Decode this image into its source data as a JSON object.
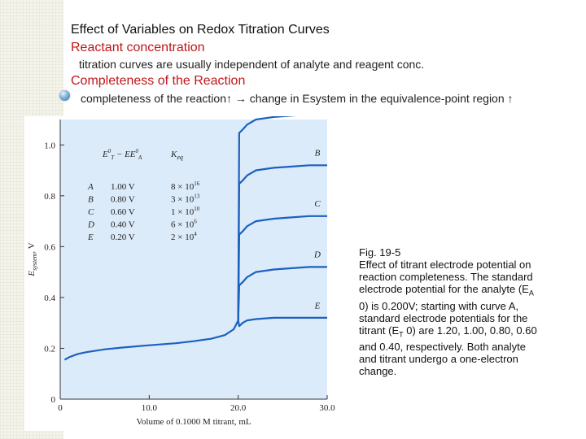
{
  "slide": {
    "heading": "Effect of Variables on Redox Titration Curves",
    "subheading1": "Reactant concentration",
    "bullet1": "titration curves are usually independent of analyte and reagent conc.",
    "subheading2": "Completeness of the Reaction",
    "bullet2": "completeness of the reaction↑ → change in Esystem in the equivalence-point region ↑"
  },
  "caption": {
    "lines": [
      "Fig. 19-5",
      " Effect of titrant electrode potential on",
      "reaction completeness. The standard",
      "electrode potential for the analyte (E",
      "0) is 0.200V; starting with curve A,",
      "standard electrode potentials for the",
      "titrant (E",
      "and 0.40, respectively. Both analyte",
      "and titrant undergo a one-electron",
      "change."
    ],
    "sub_A": "A",
    "sub_T": "T",
    "tail_titrant": " 0) are 1.20, 1.00, 0.80, 0.60"
  },
  "chart_data": {
    "type": "line",
    "xlabel": "Volume of 0.1000 M titrant, mL",
    "ylabel": "E",
    "ylabel_sub": "system",
    "ylabel_unit": ", V",
    "xlim": [
      0,
      30
    ],
    "ylim": [
      0,
      1.1
    ],
    "x_ticks": [
      0,
      10,
      20,
      30
    ],
    "x_tick_labels": [
      "0",
      "10.0",
      "20.0",
      "30.0"
    ],
    "y_ticks": [
      0,
      0.2,
      0.4,
      0.6,
      0.8,
      1.0
    ],
    "y_tick_labels": [
      "0",
      "0.2",
      "0.4",
      "0.6",
      "0.8",
      "1.0"
    ],
    "inset_table": {
      "header_E": "E",
      "header_sup": "0",
      "header_subT": "T",
      "header_mid": " − E",
      "header_subA": "A",
      "header_K": "K",
      "header_Ksub": "eq",
      "rows": [
        {
          "curve": "A",
          "e": "1.00 V",
          "k_base": "8 × 10",
          "k_exp": "16"
        },
        {
          "curve": "B",
          "e": "0.80 V",
          "k_base": "3 × 10",
          "k_exp": "13"
        },
        {
          "curve": "C",
          "e": "0.60 V",
          "k_base": "1 × 10",
          "k_exp": "10"
        },
        {
          "curve": "D",
          "e": "0.40 V",
          "k_base": "6 × 10",
          "k_exp": "6"
        },
        {
          "curve": "E",
          "e": "0.20 V",
          "k_base": "2 × 10",
          "k_exp": "4"
        }
      ]
    },
    "pre_equivalence": {
      "x": [
        0.5,
        1,
        2,
        3,
        5,
        7,
        10,
        13,
        15,
        17,
        18.5,
        19.5,
        20
      ],
      "y": [
        0.155,
        0.165,
        0.178,
        0.185,
        0.196,
        0.203,
        0.212,
        0.22,
        0.228,
        0.238,
        0.252,
        0.275,
        0.31
      ]
    },
    "series": [
      {
        "name": "A",
        "label_y": 1.18,
        "post_x": [
          20.5,
          21,
          22,
          24,
          26,
          28,
          30
        ],
        "post_y": [
          1.06,
          1.08,
          1.1,
          1.11,
          1.115,
          1.12,
          1.12
        ]
      },
      {
        "name": "B",
        "label_y": 0.97,
        "post_x": [
          20.5,
          21,
          22,
          24,
          26,
          28,
          30
        ],
        "post_y": [
          0.86,
          0.88,
          0.9,
          0.91,
          0.915,
          0.92,
          0.92
        ]
      },
      {
        "name": "C",
        "label_y": 0.77,
        "post_x": [
          20.5,
          21,
          22,
          24,
          26,
          28,
          30
        ],
        "post_y": [
          0.66,
          0.68,
          0.7,
          0.71,
          0.715,
          0.72,
          0.72
        ]
      },
      {
        "name": "D",
        "label_y": 0.57,
        "post_x": [
          20.5,
          21,
          22,
          24,
          26,
          28,
          30
        ],
        "post_y": [
          0.46,
          0.48,
          0.5,
          0.51,
          0.515,
          0.52,
          0.52
        ]
      },
      {
        "name": "E",
        "label_y": 0.37,
        "post_x": [
          20.5,
          21,
          22,
          24,
          26,
          28,
          30
        ],
        "post_y": [
          0.3,
          0.31,
          0.315,
          0.32,
          0.32,
          0.32,
          0.32
        ]
      }
    ],
    "colors": {
      "curve": "#1c60c0",
      "plot_bg": "#dcebf9",
      "axis": "#333333"
    }
  }
}
